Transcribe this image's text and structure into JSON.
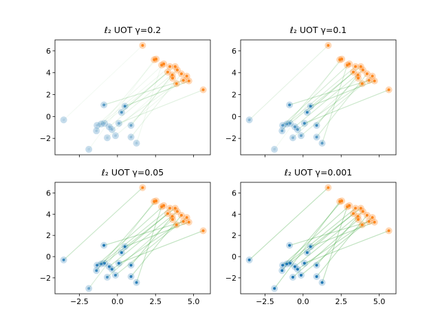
{
  "chart_data": [
    {
      "type": "scatter",
      "title": "ℓ₂ UOT γ=0.2",
      "show_xticklabels": false,
      "xlim": [
        -4.1,
        6.1
      ],
      "ylim": [
        -3.5,
        7
      ],
      "xticks": [
        {
          "value": -2.5,
          "label": "−2.5"
        },
        {
          "value": 0,
          "label": "0.0"
        },
        {
          "value": 2.5,
          "label": "2.5"
        },
        {
          "value": 5,
          "label": "5.0"
        }
      ],
      "yticks": [
        {
          "value": -2,
          "label": "−2"
        },
        0,
        2,
        4,
        6
      ],
      "source": {
        "color": "#1f77b4",
        "x": [
          -3.53,
          -1.88,
          -1.38,
          -1.34,
          -1.07,
          -0.85,
          -0.54,
          -0.67,
          -0.36,
          -0.89,
          -0.13,
          0.49,
          0.09,
          0.27,
          0.89,
          0.89,
          1.25
        ],
        "y": [
          -0.31,
          -3.0,
          -1.31,
          -0.81,
          -0.69,
          -0.62,
          -0.94,
          -1.94,
          -1.19,
          1.06,
          -1.75,
          0.94,
          -0.62,
          0.38,
          -0.81,
          -1.88,
          -2.44
        ]
      },
      "target": {
        "color": "#ff7f0e",
        "x": [
          1.65,
          2.41,
          2.54,
          3.04,
          3.44,
          3.79,
          3.93,
          3.62,
          3.88,
          4.33,
          4.55,
          4.69,
          5.63,
          3.3,
          3.6,
          4.2,
          2.9
        ],
        "y": [
          6.5,
          5.19,
          5.25,
          4.81,
          4.56,
          4.56,
          4.25,
          3.5,
          3.0,
          3.31,
          3.69,
          3.25,
          2.44,
          4.06,
          3.8,
          3.9,
          4.7
        ]
      },
      "link_color": "#2ca02c",
      "weights": [
        0,
        0,
        0.1,
        0.1,
        0.1,
        0.15,
        0.2,
        0.05,
        0.2,
        0.6,
        0.1,
        0.8,
        0.4,
        0.7,
        0.5,
        0.2,
        0.1
      ]
    },
    {
      "type": "scatter",
      "title": "ℓ₂ UOT γ=0.1",
      "show_xticklabels": false,
      "xlim": [
        -4.1,
        6.1
      ],
      "ylim": [
        -3.5,
        7
      ],
      "xticks": [
        {
          "value": -2.5,
          "label": "−2.5"
        },
        {
          "value": 0,
          "label": "0.0"
        },
        {
          "value": 2.5,
          "label": "2.5"
        },
        {
          "value": 5,
          "label": "5.0"
        }
      ],
      "yticks": [
        {
          "value": -2,
          "label": "−2"
        },
        0,
        2,
        4,
        6
      ],
      "source": {
        "color": "#1f77b4",
        "x": [
          -3.53,
          -1.88,
          -1.38,
          -1.34,
          -1.07,
          -0.85,
          -0.54,
          -0.67,
          -0.36,
          -0.89,
          -0.13,
          0.49,
          0.09,
          0.27,
          0.89,
          0.89,
          1.25
        ],
        "y": [
          -0.31,
          -3.0,
          -1.31,
          -0.81,
          -0.69,
          -0.62,
          -0.94,
          -1.94,
          -1.19,
          1.06,
          -1.75,
          0.94,
          -0.62,
          0.38,
          -0.81,
          -1.88,
          -2.44
        ]
      },
      "target": {
        "color": "#ff7f0e",
        "x": [
          1.65,
          2.41,
          2.54,
          3.04,
          3.44,
          3.79,
          3.93,
          3.62,
          3.88,
          4.33,
          4.55,
          4.69,
          5.63,
          3.3,
          3.6,
          4.2,
          2.9
        ],
        "y": [
          6.5,
          5.19,
          5.25,
          4.81,
          4.56,
          4.56,
          4.25,
          3.5,
          3.0,
          3.31,
          3.69,
          3.25,
          2.44,
          4.06,
          3.8,
          3.9,
          4.7
        ]
      },
      "link_color": "#2ca02c",
      "weights": [
        0.3,
        0.05,
        0.5,
        0.6,
        0.5,
        0.6,
        0.6,
        0.3,
        0.6,
        0.8,
        0.5,
        0.9,
        0.8,
        0.9,
        0.8,
        0.6,
        0.6
      ]
    },
    {
      "type": "scatter",
      "title": "ℓ₂ UOT γ=0.05",
      "show_xticklabels": true,
      "xlim": [
        -4.1,
        6.1
      ],
      "ylim": [
        -3.5,
        7
      ],
      "xticks": [
        {
          "value": -2.5,
          "label": "−2.5"
        },
        {
          "value": 0,
          "label": "0.0"
        },
        {
          "value": 2.5,
          "label": "2.5"
        },
        {
          "value": 5,
          "label": "5.0"
        }
      ],
      "yticks": [
        {
          "value": -2,
          "label": "−2"
        },
        0,
        2,
        4,
        6
      ],
      "source": {
        "color": "#1f77b4",
        "x": [
          -3.53,
          -1.88,
          -1.38,
          -1.34,
          -1.07,
          -0.85,
          -0.54,
          -0.67,
          -0.36,
          -0.89,
          -0.13,
          0.49,
          0.09,
          0.27,
          0.89,
          0.89,
          1.25
        ],
        "y": [
          -0.31,
          -3.0,
          -1.31,
          -0.81,
          -0.69,
          -0.62,
          -0.94,
          -1.94,
          -1.19,
          1.06,
          -1.75,
          0.94,
          -0.62,
          0.38,
          -0.81,
          -1.88,
          -2.44
        ]
      },
      "target": {
        "color": "#ff7f0e",
        "x": [
          1.65,
          2.41,
          2.54,
          3.04,
          3.44,
          3.79,
          3.93,
          3.62,
          3.88,
          4.33,
          4.55,
          4.69,
          5.63,
          3.3,
          3.6,
          4.2,
          2.9
        ],
        "y": [
          6.5,
          5.19,
          5.25,
          4.81,
          4.56,
          4.56,
          4.25,
          3.5,
          3.0,
          3.31,
          3.69,
          3.25,
          2.44,
          4.06,
          3.8,
          3.9,
          4.7
        ]
      },
      "link_color": "#2ca02c",
      "weights": [
        0.8,
        0.5,
        0.8,
        0.9,
        0.8,
        0.9,
        0.9,
        0.7,
        0.9,
        1,
        0.8,
        1,
        1,
        1,
        1,
        0.9,
        0.9
      ]
    },
    {
      "type": "scatter",
      "title": "ℓ₂ UOT γ=0.001",
      "show_xticklabels": true,
      "xlim": [
        -4.1,
        6.1
      ],
      "ylim": [
        -3.5,
        7
      ],
      "xticks": [
        {
          "value": -2.5,
          "label": "−2.5"
        },
        {
          "value": 0,
          "label": "0.0"
        },
        {
          "value": 2.5,
          "label": "2.5"
        },
        {
          "value": 5,
          "label": "5.0"
        }
      ],
      "yticks": [
        {
          "value": -2,
          "label": "−2"
        },
        0,
        2,
        4,
        6
      ],
      "source": {
        "color": "#1f77b4",
        "x": [
          -3.53,
          -1.88,
          -1.38,
          -1.34,
          -1.07,
          -0.85,
          -0.54,
          -0.67,
          -0.36,
          -0.89,
          -0.13,
          0.49,
          0.09,
          0.27,
          0.89,
          0.89,
          1.25
        ],
        "y": [
          -0.31,
          -3.0,
          -1.31,
          -0.81,
          -0.69,
          -0.62,
          -0.94,
          -1.94,
          -1.19,
          1.06,
          -1.75,
          0.94,
          -0.62,
          0.38,
          -0.81,
          -1.88,
          -2.44
        ]
      },
      "target": {
        "color": "#ff7f0e",
        "x": [
          1.65,
          2.41,
          2.54,
          3.04,
          3.44,
          3.79,
          3.93,
          3.62,
          3.88,
          4.33,
          4.55,
          4.69,
          5.63,
          3.3,
          3.6,
          4.2,
          2.9
        ],
        "y": [
          6.5,
          5.19,
          5.25,
          4.81,
          4.56,
          4.56,
          4.25,
          3.5,
          3.0,
          3.31,
          3.69,
          3.25,
          2.44,
          4.06,
          3.8,
          3.9,
          4.7
        ]
      },
      "link_color": "#2ca02c",
      "weights": [
        1,
        1,
        1,
        1,
        1,
        1,
        1,
        1,
        1,
        1,
        1,
        1,
        1,
        1,
        1,
        1,
        1
      ]
    }
  ]
}
